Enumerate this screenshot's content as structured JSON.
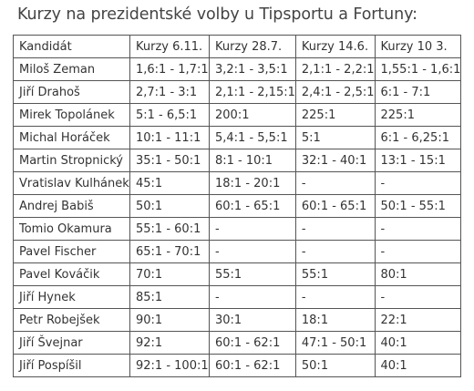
{
  "title": "Kurzy na prezidentské volby u Tipsportu a Fortuny:",
  "table": {
    "headers": [
      "Kandidát",
      "Kurzy 6.11.",
      "Kurzy 28.7.",
      "Kurzy 14.6.",
      "Kurzy 10 3."
    ],
    "rows": [
      [
        "Miloš Zeman",
        "1,6:1 - 1,7:1",
        "3,2:1 - 3,5:1",
        "2,1:1 - 2,2:1",
        "1,55:1 - 1,6:1"
      ],
      [
        "Jiří Drahoš",
        "2,7:1 - 3:1",
        "2,1:1 - 2,15:1",
        "2,4:1 - 2,5:1",
        "6:1 - 7:1"
      ],
      [
        "Mirek Topolánek",
        "5:1 - 6,5:1",
        "200:1",
        "225:1",
        "225:1"
      ],
      [
        "Michal Horáček",
        "10:1 - 11:1",
        "5,4:1 - 5,5:1",
        "5:1",
        "6:1 - 6,25:1"
      ],
      [
        "Martin Stropnický",
        "35:1 - 50:1",
        "8:1 - 10:1",
        "32:1 - 40:1",
        "13:1 - 15:1"
      ],
      [
        "Vratislav Kulhánek",
        "45:1",
        "18:1 - 20:1",
        "-",
        "-"
      ],
      [
        "Andrej Babiš",
        "50:1",
        "60:1 - 65:1",
        "60:1 - 65:1",
        "50:1 - 55:1"
      ],
      [
        "Tomio Okamura",
        "55:1 - 60:1",
        "-",
        "-",
        "-"
      ],
      [
        "Pavel Fischer",
        "65:1 - 70:1",
        "-",
        "-",
        "-"
      ],
      [
        "Pavel Kováčik",
        "70:1",
        "55:1",
        "55:1",
        "80:1"
      ],
      [
        "Jiří Hynek",
        "85:1",
        "-",
        "-",
        "-"
      ],
      [
        "Petr Robejšek",
        "90:1",
        "30:1",
        "18:1",
        "22:1"
      ],
      [
        "Jiří Švejnar",
        "92:1",
        "60:1 - 62:1",
        "47:1 - 50:1",
        "40:1"
      ],
      [
        "Jiří Pospíšil",
        "92:1 - 100:1",
        "60:1 - 62:1",
        "50:1",
        "40:1"
      ]
    ]
  }
}
